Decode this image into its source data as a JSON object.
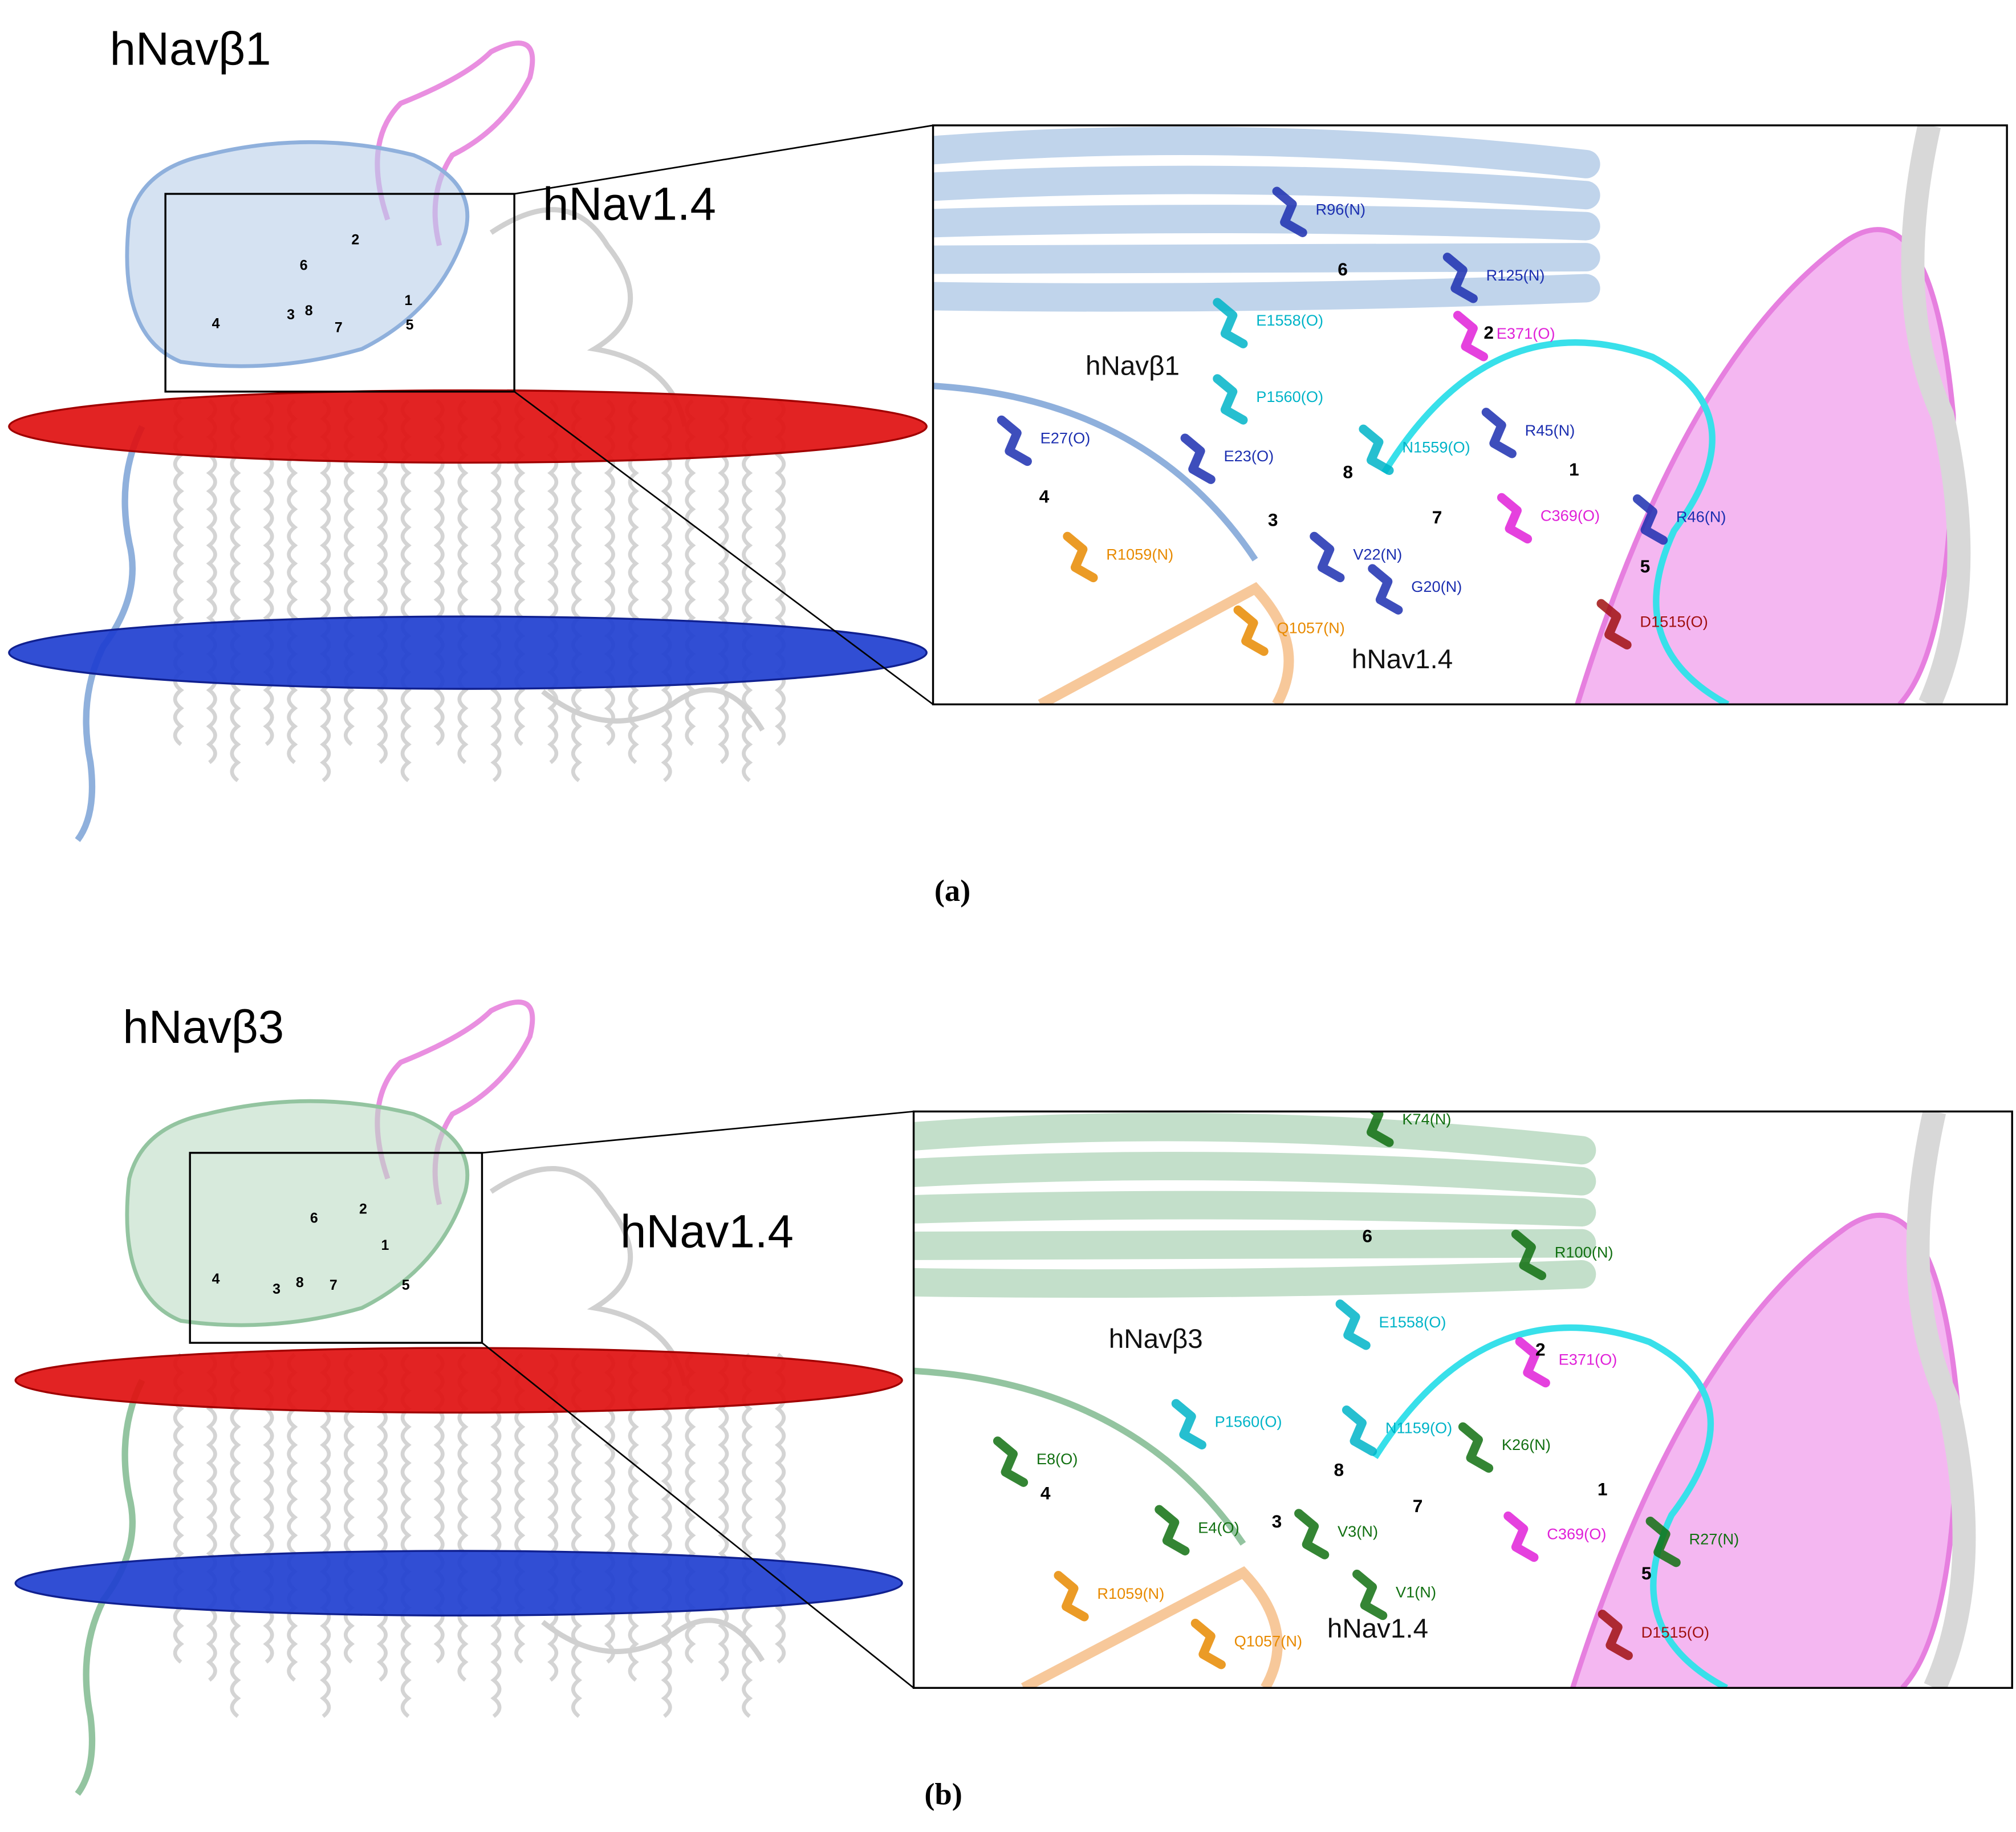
{
  "panels": [
    {
      "caption": "(a)",
      "overview": {
        "title": "hNavβ1",
        "channel_label": "hNav1.4",
        "site_numbers": [
          6,
          2,
          1,
          4,
          3,
          8,
          7,
          5
        ]
      },
      "zoom": {
        "labels": [
          {
            "text": "R96(N)",
            "color": "#1c2fb0"
          },
          {
            "text": "R125(N)",
            "color": "#1c2fb0"
          },
          {
            "text": "E1558(O)",
            "color": "#00b4c8"
          },
          {
            "text": "E371(O)",
            "color": "#e020d8"
          },
          {
            "text": "hNavβ1",
            "color": "#111111"
          },
          {
            "text": "P1560(O)",
            "color": "#00b4c8"
          },
          {
            "text": "R45(N)",
            "color": "#1c2fb0"
          },
          {
            "text": "E27(O)",
            "color": "#1c2fb0"
          },
          {
            "text": "E23(O)",
            "color": "#1c2fb0"
          },
          {
            "text": "N1559(O)",
            "color": "#00b4c8"
          },
          {
            "text": "C369(O)",
            "color": "#e020d8"
          },
          {
            "text": "R46(N)",
            "color": "#1c2fb0"
          },
          {
            "text": "R1059(N)",
            "color": "#e88a00"
          },
          {
            "text": "V22(N)",
            "color": "#1c2fb0"
          },
          {
            "text": "G20(N)",
            "color": "#1c2fb0"
          },
          {
            "text": "D1515(O)",
            "color": "#a01010"
          },
          {
            "text": "Q1057(N)",
            "color": "#e88a00"
          },
          {
            "text": "hNav1.4",
            "color": "#111111"
          }
        ],
        "site_numbers": [
          6,
          2,
          8,
          1,
          7,
          4,
          3,
          5
        ]
      }
    },
    {
      "caption": "(b)",
      "overview": {
        "title": "hNavβ3",
        "channel_label": "hNav1.4",
        "site_numbers": [
          6,
          2,
          1,
          4,
          3,
          8,
          7,
          5
        ]
      },
      "zoom": {
        "labels": [
          {
            "text": "K74(N)",
            "color": "#117011"
          },
          {
            "text": "R100(N)",
            "color": "#117011"
          },
          {
            "text": "E1558(O)",
            "color": "#00b4c8"
          },
          {
            "text": "E371(O)",
            "color": "#e020d8"
          },
          {
            "text": "hNavβ3",
            "color": "#111111"
          },
          {
            "text": "P1560(O)",
            "color": "#00b4c8"
          },
          {
            "text": "N1159(O)",
            "color": "#00b4c8"
          },
          {
            "text": "K26(N)",
            "color": "#117011"
          },
          {
            "text": "E8(O)",
            "color": "#117011"
          },
          {
            "text": "E4(O)",
            "color": "#117011"
          },
          {
            "text": "V3(N)",
            "color": "#117011"
          },
          {
            "text": "C369(O)",
            "color": "#e020d8"
          },
          {
            "text": "R27(N)",
            "color": "#117011"
          },
          {
            "text": "V1(N)",
            "color": "#117011"
          },
          {
            "text": "R1059(N)",
            "color": "#e88a00"
          },
          {
            "text": "hNav1.4",
            "color": "#111111"
          },
          {
            "text": "Q1057(N)",
            "color": "#e88a00"
          },
          {
            "text": "D1515(O)",
            "color": "#a01010"
          }
        ],
        "site_numbers": [
          6,
          2,
          8,
          7,
          1,
          4,
          3,
          5
        ]
      }
    }
  ]
}
